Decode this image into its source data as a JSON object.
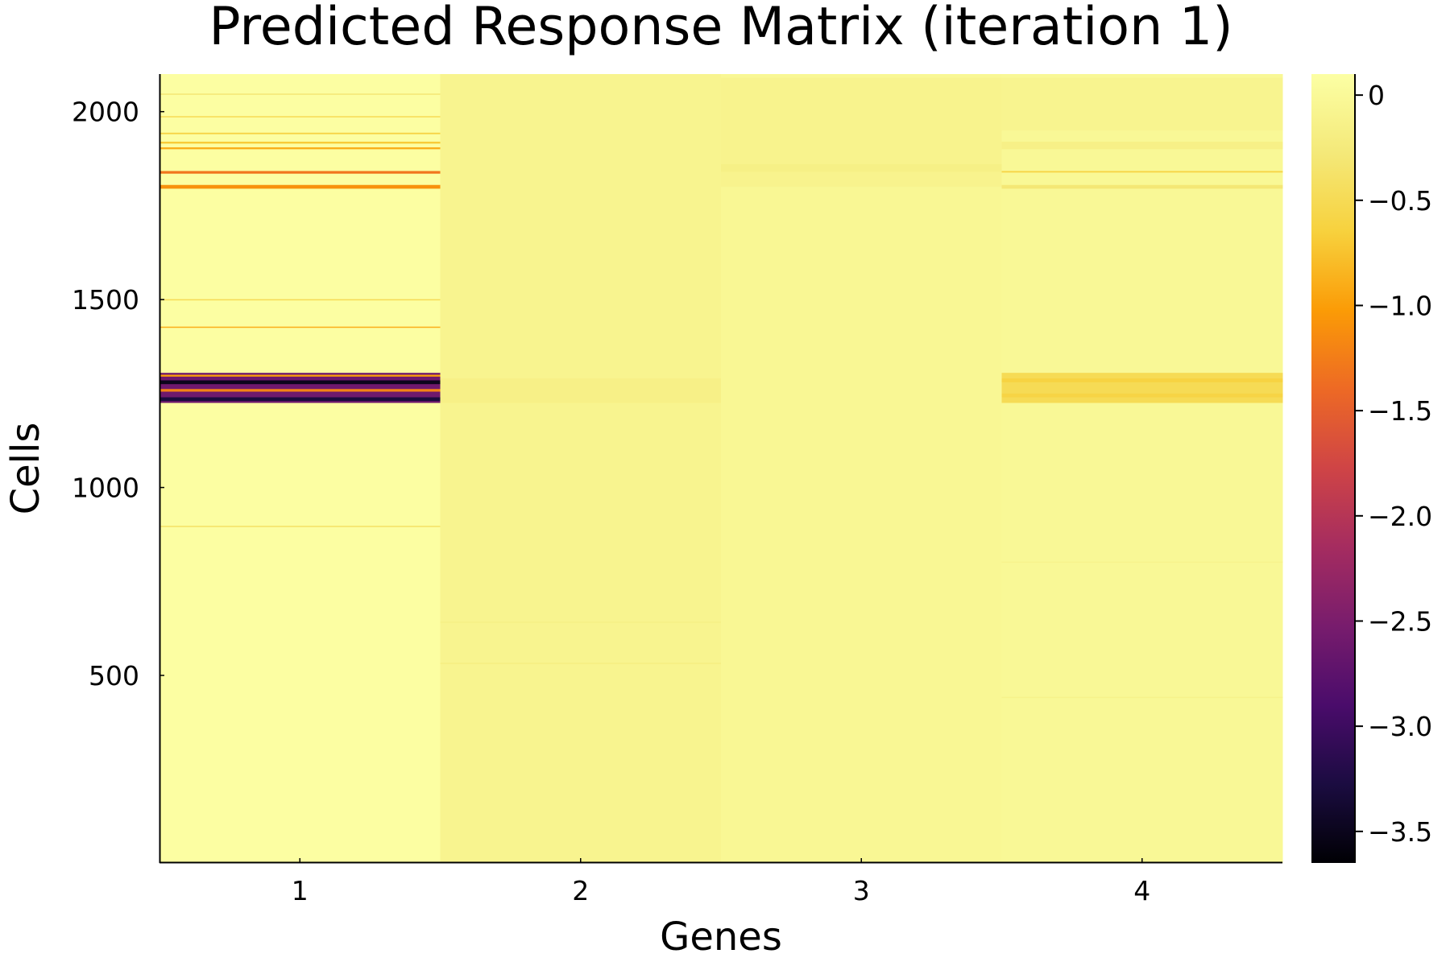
{
  "chart_data": {
    "type": "heatmap",
    "title": "Predicted Response Matrix (iteration 1)",
    "xlabel": "Genes",
    "ylabel": "Cells",
    "x_categories": [
      "1",
      "2",
      "3",
      "4"
    ],
    "y_ticks": [
      500,
      1000,
      1500,
      2000
    ],
    "y_tick_labels": [
      "500",
      "1000",
      "1500",
      "2000"
    ],
    "ylim": [
      1,
      2100
    ],
    "grid": false,
    "colormap": "inferno",
    "color_range": [
      -3.65,
      0.1
    ],
    "colorbar_ticks": [
      0,
      -0.5,
      -1.0,
      -1.5,
      -2.0,
      -2.5,
      -3.0,
      -3.5
    ],
    "colorbar_tick_labels": [
      "0",
      "−0.5",
      "−1.0",
      "−1.5",
      "−2.0",
      "−2.5",
      "−3.0",
      "−3.5"
    ],
    "columns": [
      {
        "gene": "1",
        "base_value": 0.08,
        "bands": [
          {
            "from": 1225,
            "to": 1305,
            "value": -2.6
          },
          {
            "from": 1230,
            "to": 1240,
            "value": -3.3
          },
          {
            "from": 1255,
            "to": 1262,
            "value": -1.2
          },
          {
            "from": 1275,
            "to": 1285,
            "value": -3.5
          },
          {
            "from": 1295,
            "to": 1300,
            "value": -1.0
          },
          {
            "from": 1795,
            "to": 1805,
            "value": -1.1
          },
          {
            "from": 1835,
            "to": 1842,
            "value": -1.3
          },
          {
            "from": 1900,
            "to": 1905,
            "value": -0.9
          },
          {
            "from": 1915,
            "to": 1920,
            "value": -0.7
          },
          {
            "from": 1940,
            "to": 1944,
            "value": -0.6
          },
          {
            "from": 1985,
            "to": 1988,
            "value": -0.5
          },
          {
            "from": 2045,
            "to": 2048,
            "value": -0.3
          },
          {
            "from": 1425,
            "to": 1428,
            "value": -0.9
          },
          {
            "from": 1498,
            "to": 1501,
            "value": -0.5
          },
          {
            "from": 895,
            "to": 898,
            "value": -0.4
          }
        ]
      },
      {
        "gene": "2",
        "base_value": -0.08,
        "bands": [
          {
            "from": 1225,
            "to": 1290,
            "value": -0.15
          },
          {
            "from": 530,
            "to": 534,
            "value": -0.18
          },
          {
            "from": 640,
            "to": 643,
            "value": -0.16
          }
        ]
      },
      {
        "gene": "3",
        "base_value": -0.04,
        "bands": [
          {
            "from": 1800,
            "to": 2090,
            "value": -0.1
          },
          {
            "from": 1840,
            "to": 1860,
            "value": -0.16
          }
        ]
      },
      {
        "gene": "4",
        "base_value": -0.02,
        "bands": [
          {
            "from": 1225,
            "to": 1305,
            "value": -0.5
          },
          {
            "from": 1240,
            "to": 1250,
            "value": -0.6
          },
          {
            "from": 1280,
            "to": 1290,
            "value": -0.62
          },
          {
            "from": 1795,
            "to": 1805,
            "value": -0.3
          },
          {
            "from": 1838,
            "to": 1842,
            "value": -0.6
          },
          {
            "from": 1900,
            "to": 1920,
            "value": -0.15
          },
          {
            "from": 1950,
            "to": 2090,
            "value": -0.08
          },
          {
            "from": 440,
            "to": 443,
            "value": -0.12
          },
          {
            "from": 800,
            "to": 803,
            "value": -0.1
          }
        ]
      }
    ]
  }
}
